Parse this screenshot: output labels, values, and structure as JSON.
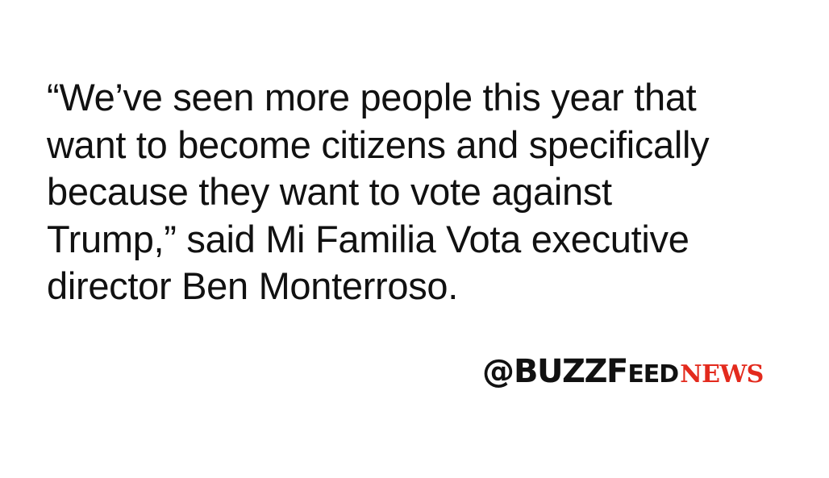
{
  "quote": {
    "lines": [
      "“We’ve seen more people this year that",
      "want to become citizens and specifically",
      "because they want to vote against",
      "Trump,” said Mi Familia Vota executive",
      "director Ben Monterroso."
    ]
  },
  "logo": {
    "at": "@",
    "buzz": "BUZZ",
    "feed_initial": "F",
    "feed_rest": "EED",
    "news": "NEWS",
    "colors": {
      "main": "#111111",
      "news": "#e32a1d"
    }
  }
}
